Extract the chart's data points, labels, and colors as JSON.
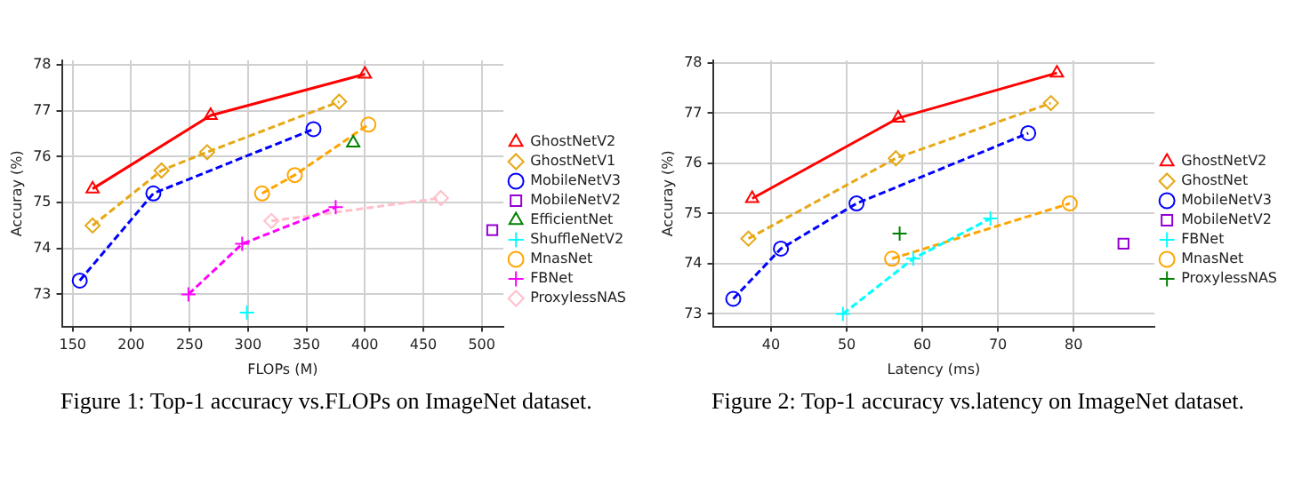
{
  "chart_data": [
    {
      "type": "line",
      "xlabel": "FLOPs (M)",
      "ylabel": "Accuray (%)",
      "xlim": [
        140.7,
        518.6
      ],
      "xticks": [
        150,
        200,
        250,
        300,
        350,
        400,
        450,
        500
      ],
      "ylim": [
        72.3,
        78.1
      ],
      "yticks": [
        73,
        74,
        75,
        76,
        77,
        78
      ],
      "grid": true,
      "legend": "right",
      "annotations": [
        "Figure 1: Top-1 accuracy vs.FLOPs on ImageNet dataset."
      ],
      "series": [
        {
          "name": "GhostNetV2",
          "color": "#ff0000",
          "marker": "triangle",
          "line_style": "solid",
          "x": [
            167,
            268,
            400
          ],
          "values": [
            75.3,
            76.9,
            77.8
          ]
        },
        {
          "name": "GhostNetV1",
          "color": "#e6a817",
          "marker": "diamond",
          "line_style": "dashed",
          "x": [
            167,
            226,
            265,
            378
          ],
          "values": [
            74.5,
            75.7,
            76.1,
            77.2
          ]
        },
        {
          "name": "MobileNetV3",
          "color": "#0000ff",
          "marker": "circle",
          "line_style": "dashed",
          "x": [
            156,
            219,
            356
          ],
          "values": [
            73.3,
            75.2,
            76.6
          ]
        },
        {
          "name": "MobileNetV2",
          "color": "#9400d3",
          "marker": "square",
          "line_style": "dashed",
          "x": [
            509
          ],
          "values": [
            74.4
          ]
        },
        {
          "name": "EfficientNet",
          "color": "#008000",
          "marker": "triangle",
          "line_style": "dashed",
          "x": [
            390
          ],
          "values": [
            76.3
          ]
        },
        {
          "name": "ShuffleNetV2",
          "color": "#00ffff",
          "marker": "cross",
          "line_style": "dashed",
          "x": [
            299
          ],
          "values": [
            72.6
          ]
        },
        {
          "name": "MnasNet",
          "color": "#ffa500",
          "marker": "circle",
          "line_style": "dashed",
          "x": [
            312,
            340,
            403
          ],
          "values": [
            75.2,
            75.6,
            76.7
          ]
        },
        {
          "name": "FBNet",
          "color": "#ff00ff",
          "marker": "cross",
          "line_style": "dashed",
          "x": [
            249,
            295,
            375
          ],
          "values": [
            73.0,
            74.1,
            74.9
          ]
        },
        {
          "name": "ProxylessNAS",
          "color": "#ffc0cb",
          "marker": "diamond",
          "line_style": "dashed",
          "x": [
            320,
            465
          ],
          "values": [
            74.6,
            75.1
          ]
        }
      ]
    },
    {
      "type": "line",
      "xlabel": "Latency (ms)",
      "ylabel": "Accuray (%)",
      "xlim": [
        32.3,
        90.7
      ],
      "xticks": [
        40,
        50,
        60,
        70,
        80
      ],
      "ylim": [
        72.75,
        78.05
      ],
      "yticks": [
        73,
        74,
        75,
        76,
        77,
        78
      ],
      "grid": true,
      "legend": "right",
      "annotations": [
        "Figure 2: Top-1 accuracy vs.latency on ImageNet dataset."
      ],
      "series": [
        {
          "name": "GhostNetV2",
          "color": "#ff0000",
          "marker": "triangle",
          "line_style": "solid",
          "x": [
            37.5,
            56.8,
            77.8
          ],
          "values": [
            75.3,
            76.9,
            77.8
          ]
        },
        {
          "name": "GhostNet",
          "color": "#e6a817",
          "marker": "diamond",
          "line_style": "dashed",
          "x": [
            37,
            56.5,
            77
          ],
          "values": [
            74.5,
            76.1,
            77.2
          ]
        },
        {
          "name": "MobileNetV3",
          "color": "#0000ff",
          "marker": "circle",
          "line_style": "dashed",
          "x": [
            35,
            41.3,
            51.3,
            74
          ],
          "values": [
            73.3,
            74.3,
            75.2,
            76.6
          ]
        },
        {
          "name": "MobileNetV2",
          "color": "#9400d3",
          "marker": "square",
          "line_style": "dashed",
          "x": [
            86.6
          ],
          "values": [
            74.4
          ]
        },
        {
          "name": "FBNet",
          "color": "#00ffff",
          "marker": "cross",
          "line_style": "dashed",
          "x": [
            49.5,
            58.8,
            69
          ],
          "values": [
            73.0,
            74.1,
            74.9
          ]
        },
        {
          "name": "MnasNet",
          "color": "#ffa500",
          "marker": "circle",
          "line_style": "dashed",
          "x": [
            56,
            79.5
          ],
          "values": [
            74.1,
            75.2
          ]
        },
        {
          "name": "ProxylessNAS",
          "color": "#008000",
          "marker": "cross",
          "line_style": "dashed",
          "x": [
            57
          ],
          "values": [
            74.6
          ]
        }
      ]
    }
  ]
}
